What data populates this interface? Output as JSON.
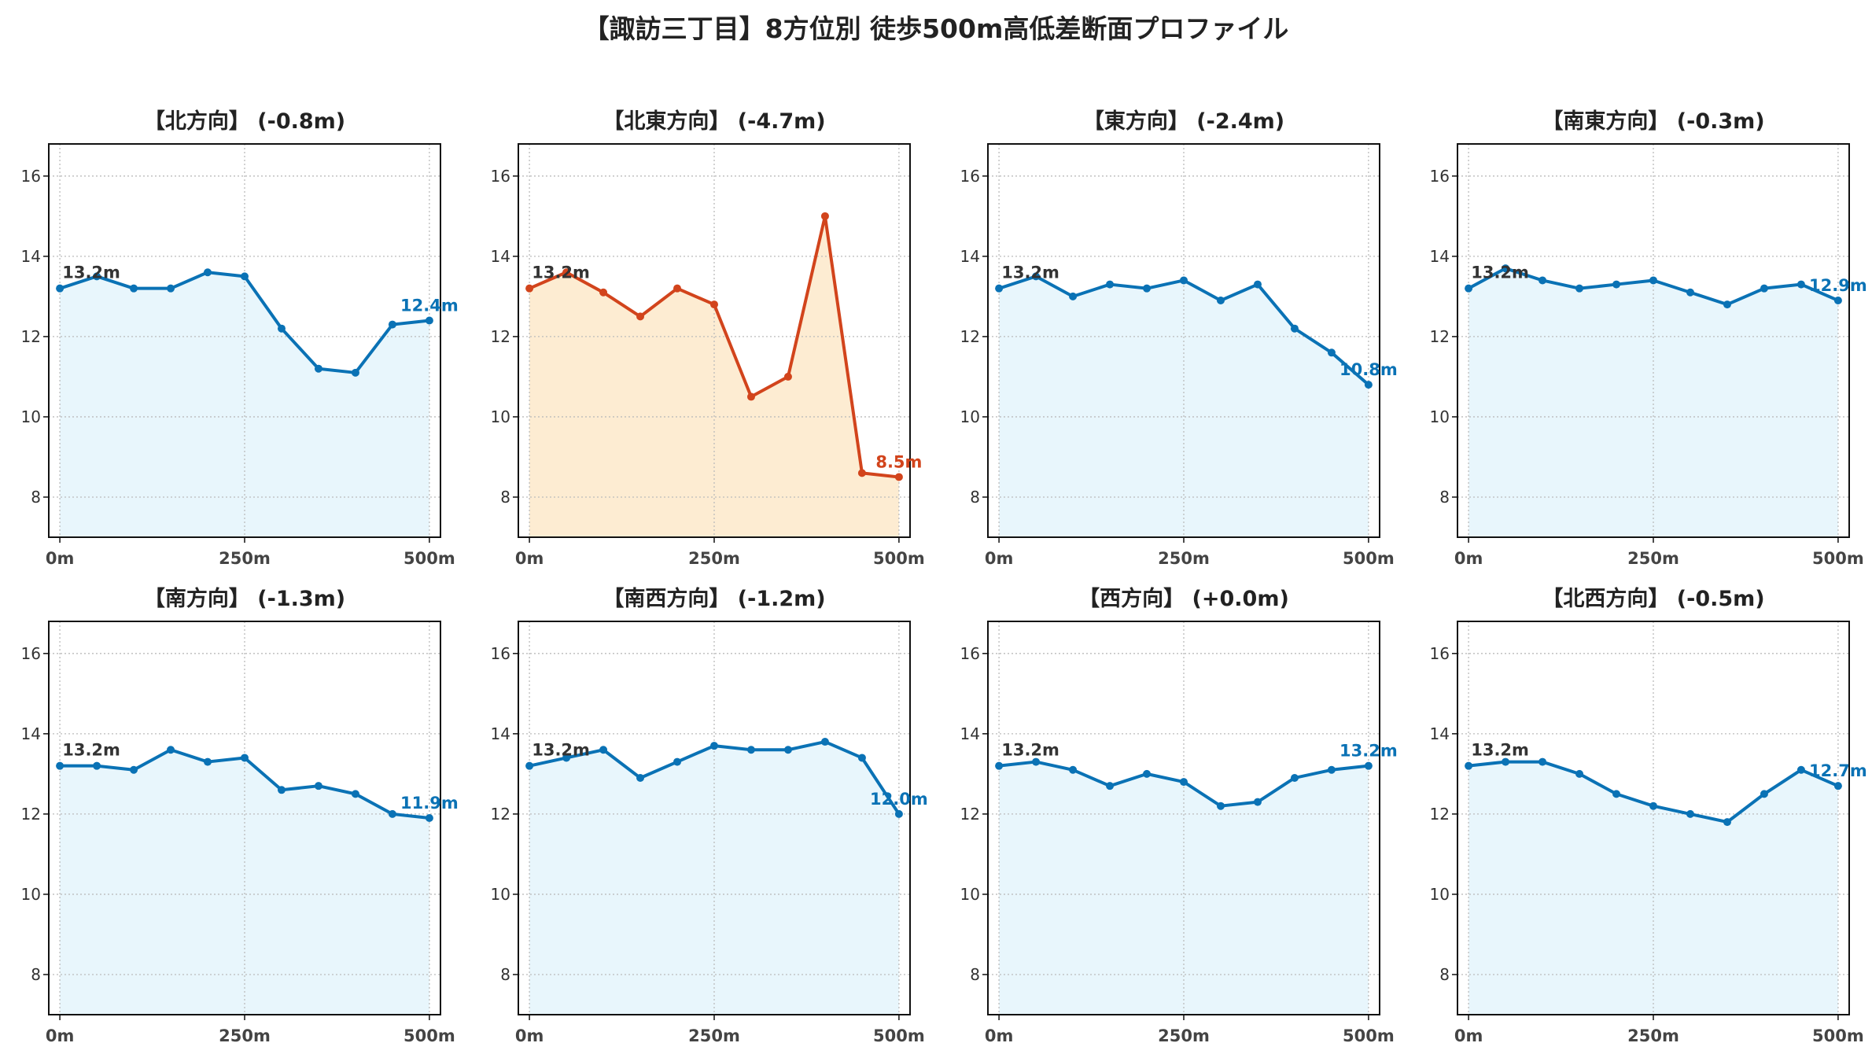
{
  "title": "【諏訪三丁目】8方位別 徒歩500m高低差断面プロファイル",
  "colors": {
    "normal_line": "#0a72b5",
    "normal_fill": "#e8f6fc",
    "highlight_line": "#d2441c",
    "highlight_fill": "#fdecd2",
    "grid": "#bbbbbb",
    "start_label": "#333333"
  },
  "chart_data": [
    {
      "type": "line",
      "title": "【北方向】 (-0.8m)",
      "highlight": false,
      "x": [
        0,
        50,
        100,
        150,
        200,
        250,
        300,
        350,
        400,
        450,
        500
      ],
      "values": [
        13.2,
        13.5,
        13.2,
        13.2,
        13.6,
        13.5,
        12.2,
        11.2,
        11.1,
        12.3,
        12.4
      ],
      "start_label": "13.2m",
      "end_label": "12.4m",
      "xticks": [
        "0m",
        "250m",
        "500m"
      ],
      "yticks": [
        8,
        10,
        12,
        14,
        16
      ],
      "ylim": [
        7,
        16.8
      ],
      "grid": true
    },
    {
      "type": "line",
      "title": "【北東方向】 (-4.7m)",
      "highlight": true,
      "x": [
        0,
        50,
        100,
        150,
        200,
        250,
        300,
        350,
        400,
        450,
        500
      ],
      "values": [
        13.2,
        13.6,
        13.1,
        12.5,
        13.2,
        12.8,
        10.5,
        11.0,
        15.0,
        8.6,
        8.5
      ],
      "start_label": "13.2m",
      "end_label": "8.5m",
      "xticks": [
        "0m",
        "250m",
        "500m"
      ],
      "yticks": [
        8,
        10,
        12,
        14,
        16
      ],
      "ylim": [
        7,
        16.8
      ],
      "grid": true
    },
    {
      "type": "line",
      "title": "【東方向】 (-2.4m)",
      "highlight": false,
      "x": [
        0,
        50,
        100,
        150,
        200,
        250,
        300,
        350,
        400,
        450,
        500
      ],
      "values": [
        13.2,
        13.5,
        13.0,
        13.3,
        13.2,
        13.4,
        12.9,
        13.3,
        12.2,
        11.6,
        10.8
      ],
      "start_label": "13.2m",
      "end_label": "10.8m",
      "xticks": [
        "0m",
        "250m",
        "500m"
      ],
      "yticks": [
        8,
        10,
        12,
        14,
        16
      ],
      "ylim": [
        7,
        16.8
      ],
      "grid": true
    },
    {
      "type": "line",
      "title": "【南東方向】 (-0.3m)",
      "highlight": false,
      "x": [
        0,
        50,
        100,
        150,
        200,
        250,
        300,
        350,
        400,
        450,
        500
      ],
      "values": [
        13.2,
        13.7,
        13.4,
        13.2,
        13.3,
        13.4,
        13.1,
        12.8,
        13.2,
        13.3,
        12.9
      ],
      "start_label": "13.2m",
      "end_label": "12.9m",
      "xticks": [
        "0m",
        "250m",
        "500m"
      ],
      "yticks": [
        8,
        10,
        12,
        14,
        16
      ],
      "ylim": [
        7,
        16.8
      ],
      "grid": true
    },
    {
      "type": "line",
      "title": "【南方向】 (-1.3m)",
      "highlight": false,
      "x": [
        0,
        50,
        100,
        150,
        200,
        250,
        300,
        350,
        400,
        450,
        500
      ],
      "values": [
        13.2,
        13.2,
        13.1,
        13.6,
        13.3,
        13.4,
        12.6,
        12.7,
        12.5,
        12.0,
        11.9
      ],
      "start_label": "13.2m",
      "end_label": "11.9m",
      "xticks": [
        "0m",
        "250m",
        "500m"
      ],
      "yticks": [
        8,
        10,
        12,
        14,
        16
      ],
      "ylim": [
        7,
        16.8
      ],
      "grid": true
    },
    {
      "type": "line",
      "title": "【南西方向】 (-1.2m)",
      "highlight": false,
      "x": [
        0,
        50,
        100,
        150,
        200,
        250,
        300,
        350,
        400,
        450,
        500
      ],
      "values": [
        13.2,
        13.4,
        13.6,
        12.9,
        13.3,
        13.7,
        13.6,
        13.6,
        13.8,
        13.4,
        12.0
      ],
      "start_label": "13.2m",
      "end_label": "12.0m",
      "xticks": [
        "0m",
        "250m",
        "500m"
      ],
      "yticks": [
        8,
        10,
        12,
        14,
        16
      ],
      "ylim": [
        7,
        16.8
      ],
      "grid": true
    },
    {
      "type": "line",
      "title": "【西方向】 (+0.0m)",
      "highlight": false,
      "x": [
        0,
        50,
        100,
        150,
        200,
        250,
        300,
        350,
        400,
        450,
        500
      ],
      "values": [
        13.2,
        13.3,
        13.1,
        12.7,
        13.0,
        12.8,
        12.2,
        12.3,
        12.9,
        13.1,
        13.2
      ],
      "start_label": "13.2m",
      "end_label": "13.2m",
      "xticks": [
        "0m",
        "250m",
        "500m"
      ],
      "yticks": [
        8,
        10,
        12,
        14,
        16
      ],
      "ylim": [
        7,
        16.8
      ],
      "grid": true
    },
    {
      "type": "line",
      "title": "【北西方向】 (-0.5m)",
      "highlight": false,
      "x": [
        0,
        50,
        100,
        150,
        200,
        250,
        300,
        350,
        400,
        450,
        500
      ],
      "values": [
        13.2,
        13.3,
        13.3,
        13.0,
        12.5,
        12.2,
        12.0,
        11.8,
        12.5,
        13.1,
        12.7
      ],
      "start_label": "13.2m",
      "end_label": "12.7m",
      "xticks": [
        "0m",
        "250m",
        "500m"
      ],
      "yticks": [
        8,
        10,
        12,
        14,
        16
      ],
      "ylim": [
        7,
        16.8
      ],
      "grid": true
    }
  ]
}
